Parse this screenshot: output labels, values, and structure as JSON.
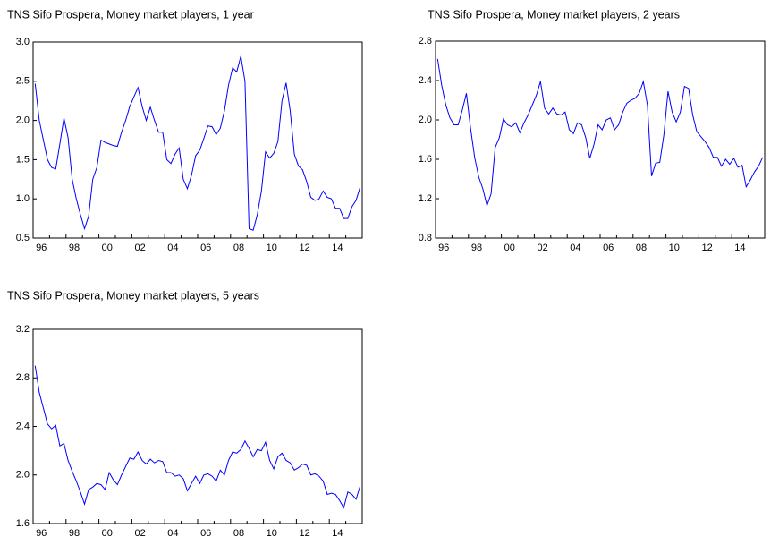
{
  "chart_data": [
    {
      "type": "line",
      "title": "TNS Sifo Prospera, Money market players, 1 year",
      "categories": [
        "96",
        null,
        null,
        null,
        null,
        null,
        null,
        null,
        "98",
        null,
        null,
        null,
        null,
        null,
        null,
        null,
        "00",
        null,
        null,
        null,
        null,
        null,
        null,
        null,
        "02",
        null,
        null,
        null,
        null,
        null,
        null,
        null,
        "04",
        null,
        null,
        null,
        null,
        null,
        null,
        null,
        "06",
        null,
        null,
        null,
        null,
        null,
        null,
        null,
        "08",
        null,
        null,
        null,
        null,
        null,
        null,
        null,
        "10",
        null,
        null,
        null,
        null,
        null,
        null,
        null,
        "12",
        null,
        null,
        null,
        null,
        null,
        null,
        null,
        "14",
        null,
        null,
        null,
        null,
        null,
        null,
        null
      ],
      "series": [
        {
          "color": "#0000ff",
          "values": [
            2.47,
            2.0,
            1.75,
            1.5,
            1.4,
            1.38,
            1.7,
            2.03,
            1.78,
            1.25,
            1.0,
            0.8,
            0.62,
            0.78,
            1.25,
            1.4,
            1.75,
            1.72,
            1.7,
            1.68,
            1.67,
            1.85,
            2.0,
            2.18,
            2.3,
            2.42,
            2.18,
            2.0,
            2.17,
            2.0,
            1.85,
            1.85,
            1.5,
            1.45,
            1.57,
            1.65,
            1.25,
            1.13,
            1.3,
            1.55,
            1.62,
            1.77,
            1.93,
            1.92,
            1.82,
            1.9,
            2.12,
            2.45,
            2.67,
            2.62,
            2.82,
            2.5,
            0.62,
            0.6,
            0.8,
            1.1,
            1.6,
            1.52,
            1.58,
            1.73,
            2.25,
            2.48,
            2.12,
            1.57,
            1.42,
            1.37,
            1.22,
            1.02,
            0.98,
            1.0,
            1.1,
            1.02,
            1.0,
            0.88,
            0.88,
            0.75,
            0.75,
            0.9,
            0.98,
            1.15
          ]
        }
      ],
      "ylim": [
        0.5,
        3.0
      ],
      "yticks": [
        {
          "value": 0.5,
          "label": "0.5"
        },
        {
          "value": 1.0,
          "label": "1.0"
        },
        {
          "value": 1.5,
          "label": "1.5"
        },
        {
          "value": 2.0,
          "label": "2.0"
        },
        {
          "value": 2.5,
          "label": "2.5"
        },
        {
          "value": 3.0,
          "label": "3.0"
        }
      ],
      "grid": false
    },
    {
      "type": "line",
      "title": "TNS Sifo Prospera, Money market players, 2 years",
      "categories": [
        "96",
        null,
        null,
        null,
        null,
        null,
        null,
        null,
        "98",
        null,
        null,
        null,
        null,
        null,
        null,
        null,
        "00",
        null,
        null,
        null,
        null,
        null,
        null,
        null,
        "02",
        null,
        null,
        null,
        null,
        null,
        null,
        null,
        "04",
        null,
        null,
        null,
        null,
        null,
        null,
        null,
        "06",
        null,
        null,
        null,
        null,
        null,
        null,
        null,
        "08",
        null,
        null,
        null,
        null,
        null,
        null,
        null,
        "10",
        null,
        null,
        null,
        null,
        null,
        null,
        null,
        "12",
        null,
        null,
        null,
        null,
        null,
        null,
        null,
        "14",
        null,
        null,
        null,
        null,
        null,
        null,
        null
      ],
      "series": [
        {
          "color": "#0000ff",
          "values": [
            2.62,
            2.35,
            2.15,
            2.02,
            1.95,
            1.95,
            2.1,
            2.27,
            1.92,
            1.62,
            1.42,
            1.3,
            1.13,
            1.25,
            1.72,
            1.82,
            2.01,
            1.95,
            1.93,
            1.97,
            1.87,
            1.97,
            2.05,
            2.15,
            2.25,
            2.39,
            2.12,
            2.06,
            2.12,
            2.06,
            2.05,
            2.08,
            1.9,
            1.86,
            1.97,
            1.95,
            1.82,
            1.61,
            1.75,
            1.95,
            1.9,
            2.0,
            2.02,
            1.9,
            1.95,
            2.08,
            2.17,
            2.2,
            2.22,
            2.27,
            2.39,
            2.15,
            1.43,
            1.56,
            1.57,
            1.85,
            2.29,
            2.08,
            1.98,
            2.08,
            2.34,
            2.32,
            2.05,
            1.88,
            1.83,
            1.78,
            1.72,
            1.62,
            1.62,
            1.53,
            1.6,
            1.55,
            1.61,
            1.52,
            1.54,
            1.32,
            1.39,
            1.47,
            1.53,
            1.62
          ]
        }
      ],
      "ylim": [
        0.8,
        2.8
      ],
      "yticks": [
        0.8,
        1.2,
        1.6,
        {
          "value": 2.0,
          "label": "2.0"
        },
        2.4,
        2.8
      ],
      "grid": false
    },
    {
      "type": "line",
      "title": "TNS Sifo Prospera, Money market players, 5 years",
      "categories": [
        "96",
        null,
        null,
        null,
        null,
        null,
        null,
        null,
        "98",
        null,
        null,
        null,
        null,
        null,
        null,
        null,
        "00",
        null,
        null,
        null,
        null,
        null,
        null,
        null,
        "02",
        null,
        null,
        null,
        null,
        null,
        null,
        null,
        "04",
        null,
        null,
        null,
        null,
        null,
        null,
        null,
        "06",
        null,
        null,
        null,
        null,
        null,
        null,
        null,
        "08",
        null,
        null,
        null,
        null,
        null,
        null,
        null,
        "10",
        null,
        null,
        null,
        null,
        null,
        null,
        null,
        "12",
        null,
        null,
        null,
        null,
        null,
        null,
        null,
        "14",
        null,
        null,
        null,
        null,
        null,
        null,
        null
      ],
      "series": [
        {
          "color": "#0000ff",
          "values": [
            2.9,
            2.68,
            2.55,
            2.42,
            2.38,
            2.41,
            2.24,
            2.26,
            2.12,
            2.03,
            1.95,
            1.86,
            1.76,
            1.88,
            1.9,
            1.93,
            1.92,
            1.88,
            2.02,
            1.96,
            1.92,
            2.0,
            2.07,
            2.14,
            2.13,
            2.19,
            2.12,
            2.09,
            2.13,
            2.1,
            2.12,
            2.11,
            2.02,
            2.02,
            1.99,
            2.0,
            1.97,
            1.87,
            1.93,
            1.99,
            1.93,
            2.0,
            2.01,
            1.99,
            1.95,
            2.04,
            2.0,
            2.12,
            2.19,
            2.18,
            2.21,
            2.28,
            2.22,
            2.15,
            2.21,
            2.2,
            2.27,
            2.12,
            2.05,
            2.15,
            2.18,
            2.12,
            2.1,
            2.04,
            2.06,
            2.09,
            2.08,
            2.0,
            2.01,
            1.99,
            1.95,
            1.84,
            1.85,
            1.84,
            1.79,
            1.73,
            1.86,
            1.84,
            1.8,
            1.91
          ]
        }
      ],
      "ylim": [
        1.6,
        3.2
      ],
      "yticks": [
        1.6,
        {
          "value": 2.0,
          "label": "2.0"
        },
        2.4,
        2.8,
        3.2
      ],
      "grid": false
    }
  ]
}
